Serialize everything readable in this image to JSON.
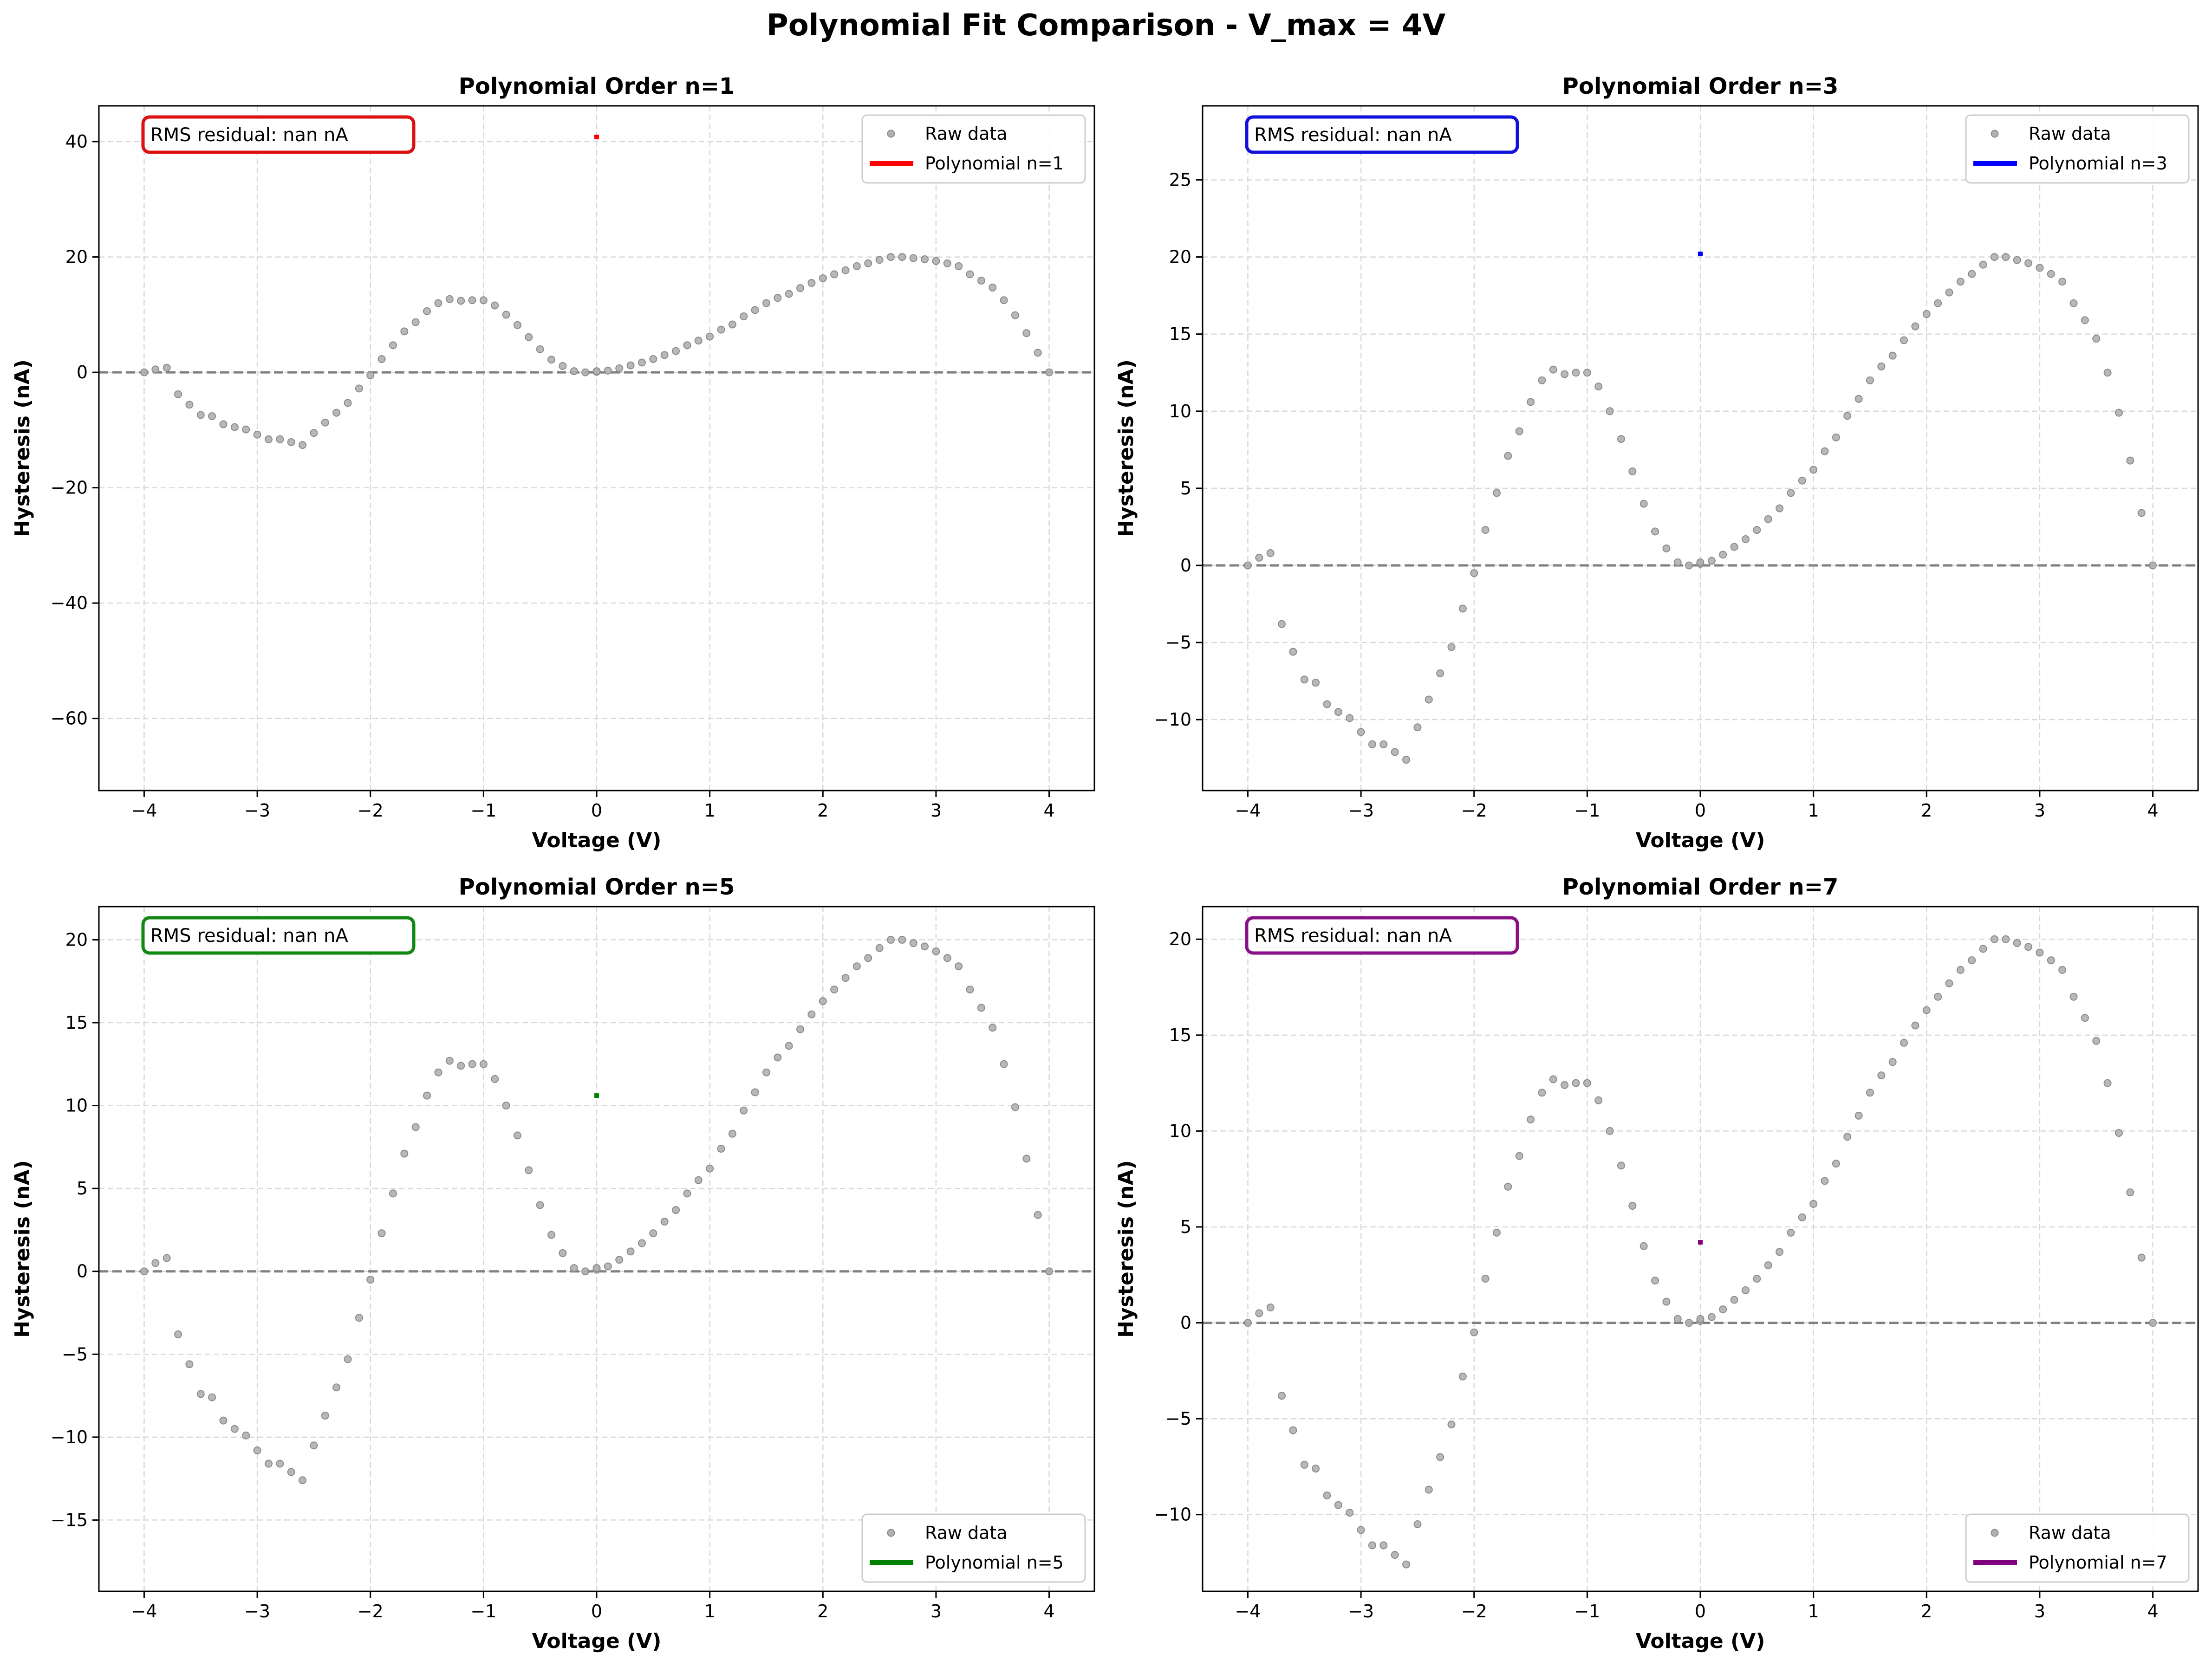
{
  "suptitle": "Polynomial Fit Comparison - V_max = 4V",
  "raw_data_x": [
    -4.0,
    -3.9,
    -3.8,
    -3.7,
    -3.6,
    -3.5,
    -3.4,
    -3.3,
    -3.2,
    -3.1,
    -3.0,
    -2.9,
    -2.8,
    -2.7,
    -2.6,
    -2.5,
    -2.4,
    -2.3,
    -2.2,
    -2.1,
    -2.0,
    -1.9,
    -1.8,
    -1.7,
    -1.6,
    -1.5,
    -1.4,
    -1.3,
    -1.2,
    -1.1,
    -1.0,
    -0.9,
    -0.8,
    -0.7,
    -0.6,
    -0.5,
    -0.4,
    -0.3,
    -0.2,
    -0.1,
    0.0,
    0.0,
    0.1,
    0.2,
    0.3,
    0.4,
    0.5,
    0.6,
    0.7,
    0.8,
    0.9,
    1.0,
    1.1,
    1.2,
    1.3,
    1.4,
    1.5,
    1.6,
    1.7,
    1.8,
    1.9,
    2.0,
    2.1,
    2.2,
    2.3,
    2.4,
    2.5,
    2.6,
    2.7,
    2.8,
    2.9,
    3.0,
    3.1,
    3.2,
    3.3,
    3.4,
    3.5,
    3.6,
    3.7,
    3.8,
    3.9,
    4.0
  ],
  "raw_data_y": [
    0.0,
    0.5,
    0.8,
    -3.8,
    -5.6,
    -7.4,
    -7.6,
    -9.0,
    -9.5,
    -9.9,
    -10.8,
    -11.6,
    -11.6,
    -12.1,
    -12.6,
    -10.5,
    -8.7,
    -7.0,
    -5.3,
    -2.8,
    -0.5,
    2.3,
    4.7,
    7.1,
    8.7,
    10.6,
    12.0,
    12.7,
    12.4,
    12.5,
    12.5,
    11.6,
    10.0,
    8.2,
    6.1,
    4.0,
    2.2,
    1.1,
    0.2,
    0.0,
    0.1,
    0.2,
    0.3,
    0.7,
    1.2,
    1.7,
    2.3,
    3.0,
    3.7,
    4.7,
    5.5,
    6.2,
    7.4,
    8.3,
    9.7,
    10.8,
    12.0,
    12.9,
    13.6,
    14.6,
    15.5,
    16.3,
    17.0,
    17.7,
    18.4,
    18.9,
    19.5,
    20.0,
    20.0,
    19.8,
    19.6,
    19.3,
    18.9,
    18.4,
    17.0,
    15.9,
    14.7,
    12.5,
    9.9,
    6.8,
    3.4,
    0.0
  ],
  "chart_data": [
    {
      "type": "scatter",
      "title": "Polynomial Order n=1",
      "xlabel": "Voltage (V)",
      "ylabel": "Hysteresis (nA)",
      "xlim": [
        -4.4,
        4.4
      ],
      "ylim": [
        -72.5,
        46.2
      ],
      "xticks": [
        -4,
        -3,
        -2,
        -1,
        0,
        1,
        2,
        3,
        4
      ],
      "yticks": [
        -60,
        -40,
        -20,
        0,
        20,
        40
      ],
      "grid": true,
      "legend_position": "upper right",
      "legend": [
        "Raw data",
        "Polynomial n=1"
      ],
      "fit_color": "#ff0000",
      "fit_point": [
        0,
        40.8
      ],
      "annotation": "RMS residual: nan nA",
      "annotation_color": "#dd1111"
    },
    {
      "type": "scatter",
      "title": "Polynomial Order n=3",
      "xlabel": "Voltage (V)",
      "ylabel": "Hysteresis (nA)",
      "xlim": [
        -4.4,
        4.4
      ],
      "ylim": [
        -14.6,
        29.8
      ],
      "xticks": [
        -4,
        -3,
        -2,
        -1,
        0,
        1,
        2,
        3,
        4
      ],
      "yticks": [
        -10,
        -5,
        0,
        5,
        10,
        15,
        20,
        25
      ],
      "grid": true,
      "legend_position": "upper right",
      "legend": [
        "Raw data",
        "Polynomial n=3"
      ],
      "fit_color": "#0000ff",
      "fit_point": [
        0,
        20.2
      ],
      "annotation": "RMS residual: nan nA",
      "annotation_color": "#1111dd"
    },
    {
      "type": "scatter",
      "title": "Polynomial Order n=5",
      "xlabel": "Voltage (V)",
      "ylabel": "Hysteresis (nA)",
      "xlim": [
        -4.4,
        4.4
      ],
      "ylim": [
        -19.3,
        22.0
      ],
      "xticks": [
        -4,
        -3,
        -2,
        -1,
        0,
        1,
        2,
        3,
        4
      ],
      "yticks": [
        -15,
        -10,
        -5,
        0,
        5,
        10,
        15,
        20
      ],
      "grid": true,
      "legend_position": "lower right",
      "legend": [
        "Raw data",
        "Polynomial n=5"
      ],
      "fit_color": "#008000",
      "fit_point": [
        0,
        10.6
      ],
      "annotation": "RMS residual: nan nA",
      "annotation_color": "#118811"
    },
    {
      "type": "scatter",
      "title": "Polynomial Order n=7",
      "xlabel": "Voltage (V)",
      "ylabel": "Hysteresis (nA)",
      "xlim": [
        -4.4,
        4.4
      ],
      "ylim": [
        -14.0,
        21.7
      ],
      "xticks": [
        -4,
        -3,
        -2,
        -1,
        0,
        1,
        2,
        3,
        4
      ],
      "yticks": [
        -10,
        -5,
        0,
        5,
        10,
        15,
        20
      ],
      "grid": true,
      "legend_position": "lower right",
      "legend": [
        "Raw data",
        "Polynomial n=7"
      ],
      "fit_color": "#800080",
      "fit_point": [
        0,
        4.2
      ],
      "annotation": "RMS residual: nan nA",
      "annotation_color": "#881188"
    }
  ]
}
